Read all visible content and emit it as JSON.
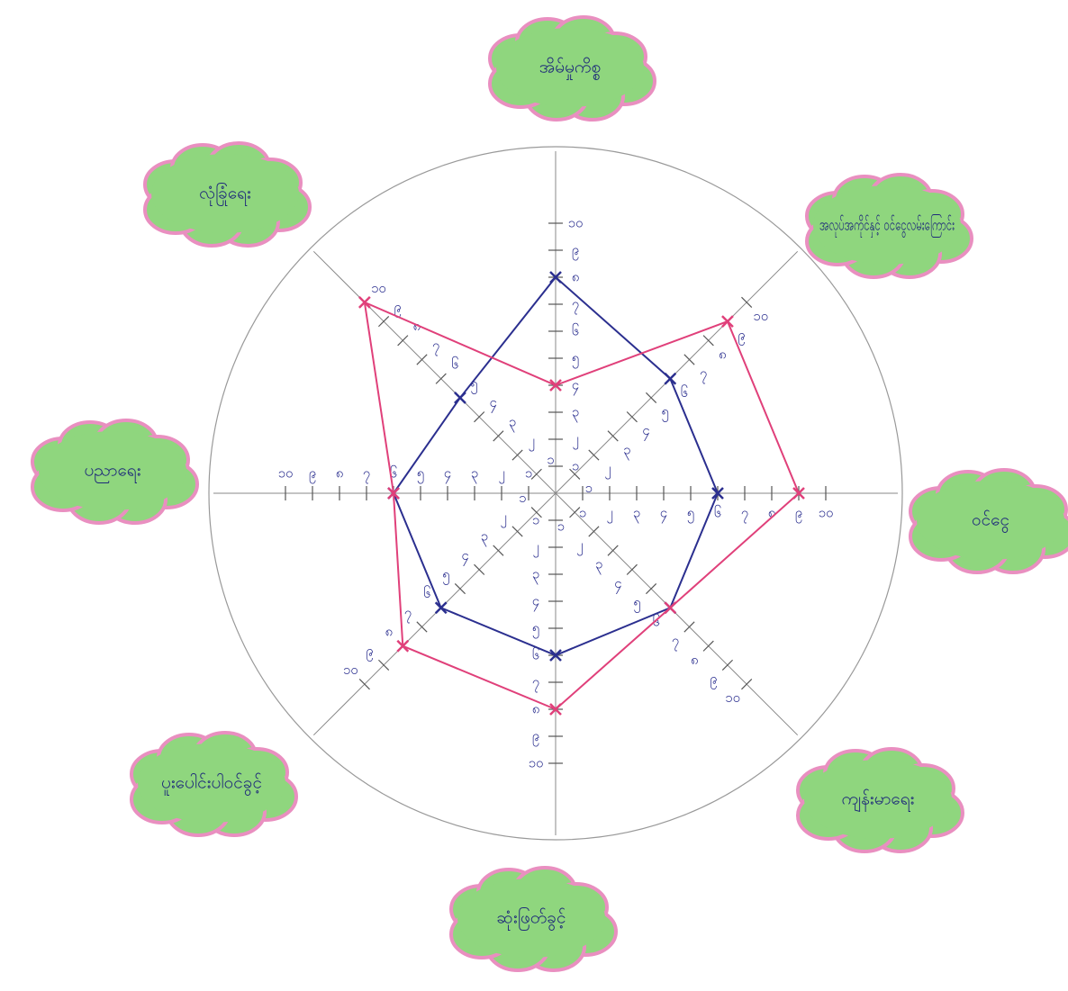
{
  "chart_data": {
    "type": "radar",
    "categories": [
      "အိမ်မှုကိစ္စ",
      "အလုပ်အကိုင်နှင့် ဝင်ငွေလမ်းကြောင်း",
      "ဝင်ငွေ",
      "ကျန်းမာရေး",
      "ဆုံးဖြတ်ခွင့်",
      "ပူးပေါင်းပါဝင်ခွင့်",
      "ပညာရေး",
      "လုံခြုံရေး"
    ],
    "series": [
      {
        "color": "#2b2f8f",
        "values": [
          8,
          6,
          6,
          6,
          6,
          6,
          6,
          5
        ]
      },
      {
        "color": "#e0407a",
        "values": [
          4,
          9,
          9,
          6,
          8,
          8,
          6,
          10
        ]
      }
    ],
    "rlim": [
      0,
      10
    ],
    "rticks": [
      {
        "value": 1,
        "label": "၁"
      },
      {
        "value": 2,
        "label": "၂"
      },
      {
        "value": 3,
        "label": "၃"
      },
      {
        "value": 4,
        "label": "၄"
      },
      {
        "value": 5,
        "label": "၅"
      },
      {
        "value": 6,
        "label": "၆"
      },
      {
        "value": 7,
        "label": "၇"
      },
      {
        "value": 8,
        "label": "၈"
      },
      {
        "value": 9,
        "label": "၉"
      },
      {
        "value": 10,
        "label": "၁၀"
      }
    ]
  }
}
